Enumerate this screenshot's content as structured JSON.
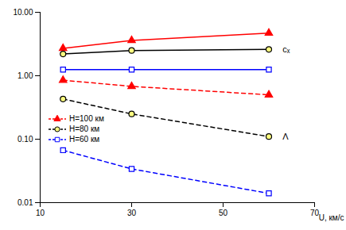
{
  "chart_data": {
    "type": "line",
    "x_label": "U, км/с",
    "x": [
      15,
      30,
      60
    ],
    "series": [
      {
        "name": "H=100 км",
        "color": "#ff0000",
        "marker": "triangle",
        "line_style": "solid",
        "values": [
          2.7,
          3.6,
          4.7
        ]
      },
      {
        "name": "H=80 км",
        "color": "#000000",
        "marker": "circle",
        "line_style": "solid",
        "values": [
          2.2,
          2.5,
          2.6
        ]
      },
      {
        "name": "H=60 км",
        "color": "#0000ff",
        "marker": "square",
        "line_style": "solid",
        "values": [
          1.25,
          1.25,
          1.25
        ]
      },
      {
        "name": "H=100 км",
        "color": "#ff0000",
        "marker": "triangle",
        "line_style": "dashed",
        "values": [
          0.85,
          0.68,
          0.5
        ]
      },
      {
        "name": "H=80 км",
        "color": "#000000",
        "marker": "circle",
        "line_style": "dashed",
        "values": [
          0.43,
          0.25,
          0.11
        ]
      },
      {
        "name": "H=60 км",
        "color": "#0000ff",
        "marker": "square",
        "line_style": "dashed",
        "values": [
          0.067,
          0.034,
          0.014
        ]
      }
    ],
    "annotations": [
      {
        "text": "cₓ",
        "x": 63,
        "y": 2.6
      },
      {
        "text": "Λ",
        "x": 63,
        "y": 0.11
      }
    ],
    "xlim": [
      10,
      70
    ],
    "xticks": [
      10,
      30,
      50,
      70
    ],
    "ylim": [
      0.01,
      10
    ],
    "yticks": [
      0.01,
      {
        "value": 0.1,
        "label": "0.10"
      },
      {
        "value": 1,
        "label": "1.00"
      },
      {
        "value": 10,
        "label": "10.00"
      }
    ],
    "log": "y",
    "grid": false,
    "legend": "left"
  }
}
